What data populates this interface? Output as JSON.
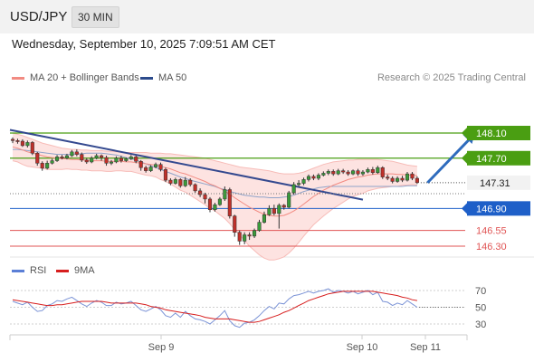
{
  "header": {
    "symbol": "USD/JPY",
    "timeframe": "30 MIN"
  },
  "datetime": "Wednesday, September 10, 2025 7:09:51 AM CET",
  "legend_main": [
    {
      "label": "MA 20 + Bollinger Bands",
      "color": "#f28b82"
    },
    {
      "label": "MA 50",
      "color": "#2c4b8c"
    }
  ],
  "credit": "Research © 2025 Trading Central",
  "legend_rsi": [
    {
      "label": "RSI",
      "color": "#5b7fd6"
    },
    {
      "label": "9MA",
      "color": "#d71e1e"
    }
  ],
  "colors": {
    "up": "#3a9a3a",
    "down": "#c0302a",
    "resistance": "#4a9e12",
    "support_blue": "#1e5fc8",
    "support_red": "#e05555"
  },
  "chart_data": [
    {
      "type": "candlestick",
      "title": "USD/JPY 30 MIN",
      "x_ticks": [
        "Sep 9",
        "Sep 10",
        "Sep 11"
      ],
      "last_price": "147.31",
      "levels": [
        {
          "value": "148.10",
          "kind": "resistance"
        },
        {
          "value": "147.70",
          "kind": "resistance"
        },
        {
          "value": "146.90",
          "kind": "support"
        },
        {
          "value": "146.55",
          "kind": "support"
        },
        {
          "value": "146.30",
          "kind": "support"
        }
      ],
      "candles": [
        [
          148.0,
          147.98,
          148.03,
          147.94
        ],
        [
          147.98,
          147.97,
          148.01,
          147.93
        ],
        [
          147.97,
          147.9,
          148.0,
          147.88
        ],
        [
          147.9,
          147.95,
          147.98,
          147.87
        ],
        [
          147.95,
          147.78,
          147.97,
          147.75
        ],
        [
          147.78,
          147.62,
          147.8,
          147.58
        ],
        [
          147.62,
          147.54,
          147.65,
          147.5
        ],
        [
          147.54,
          147.62,
          147.66,
          147.52
        ],
        [
          147.62,
          147.66,
          147.69,
          147.6
        ],
        [
          147.66,
          147.72,
          147.75,
          147.64
        ],
        [
          147.72,
          147.7,
          147.75,
          147.68
        ],
        [
          147.7,
          147.74,
          147.77,
          147.68
        ],
        [
          147.74,
          147.8,
          147.83,
          147.72
        ],
        [
          147.8,
          147.76,
          147.84,
          147.73
        ],
        [
          147.76,
          147.67,
          147.79,
          147.64
        ],
        [
          147.67,
          147.64,
          147.7,
          147.61
        ],
        [
          147.64,
          147.7,
          147.73,
          147.62
        ],
        [
          147.7,
          147.74,
          147.77,
          147.68
        ],
        [
          147.74,
          147.71,
          147.76,
          147.66
        ],
        [
          147.71,
          147.62,
          147.74,
          147.58
        ],
        [
          147.62,
          147.64,
          147.67,
          147.59
        ],
        [
          147.64,
          147.7,
          147.73,
          147.62
        ],
        [
          147.7,
          147.66,
          147.74,
          147.63
        ],
        [
          147.66,
          147.69,
          147.71,
          147.64
        ],
        [
          147.69,
          147.72,
          147.75,
          147.67
        ],
        [
          147.72,
          147.65,
          147.74,
          147.62
        ],
        [
          147.65,
          147.55,
          147.67,
          147.5
        ],
        [
          147.55,
          147.5,
          147.58,
          147.47
        ],
        [
          147.5,
          147.56,
          147.59,
          147.48
        ],
        [
          147.56,
          147.6,
          147.63,
          147.54
        ],
        [
          147.6,
          147.52,
          147.63,
          147.49
        ],
        [
          147.52,
          147.35,
          147.55,
          147.32
        ],
        [
          147.35,
          147.3,
          147.38,
          147.27
        ],
        [
          147.3,
          147.36,
          147.39,
          147.28
        ],
        [
          147.36,
          147.26,
          147.38,
          147.23
        ],
        [
          147.26,
          147.35,
          147.4,
          147.24
        ],
        [
          147.35,
          147.28,
          147.38,
          147.25
        ],
        [
          147.28,
          147.18,
          147.3,
          147.15
        ],
        [
          147.18,
          147.12,
          147.22,
          147.08
        ],
        [
          147.12,
          147.05,
          147.15,
          146.98
        ],
        [
          147.05,
          146.88,
          147.08,
          146.84
        ],
        [
          146.88,
          146.96,
          146.99,
          146.85
        ],
        [
          146.96,
          147.05,
          147.08,
          146.94
        ],
        [
          147.05,
          147.2,
          147.25,
          147.02
        ],
        [
          147.2,
          146.78,
          147.23,
          146.74
        ],
        [
          146.78,
          146.52,
          146.8,
          146.45
        ],
        [
          146.52,
          146.38,
          146.55,
          146.32
        ],
        [
          146.38,
          146.48,
          146.52,
          146.33
        ],
        [
          146.48,
          146.46,
          146.52,
          146.4
        ],
        [
          146.46,
          146.55,
          146.58,
          146.43
        ],
        [
          146.55,
          146.68,
          146.72,
          146.53
        ],
        [
          146.68,
          146.8,
          146.85,
          146.66
        ],
        [
          146.8,
          146.9,
          146.95,
          146.78
        ],
        [
          146.9,
          146.82,
          146.96,
          146.79
        ],
        [
          146.82,
          146.95,
          146.98,
          146.58
        ],
        [
          146.95,
          146.92,
          146.97,
          146.88
        ],
        [
          146.92,
          147.15,
          147.18,
          146.9
        ],
        [
          147.15,
          147.28,
          147.32,
          147.12
        ],
        [
          147.28,
          147.3,
          147.35,
          147.25
        ],
        [
          147.3,
          147.36,
          147.39,
          147.27
        ],
        [
          147.36,
          147.41,
          147.44,
          147.33
        ],
        [
          147.41,
          147.38,
          147.44,
          147.35
        ],
        [
          147.38,
          147.43,
          147.46,
          147.35
        ],
        [
          147.43,
          147.46,
          147.49,
          147.41
        ],
        [
          147.46,
          147.49,
          147.52,
          147.43
        ],
        [
          147.49,
          147.45,
          147.52,
          147.42
        ],
        [
          147.45,
          147.5,
          147.53,
          147.43
        ],
        [
          147.5,
          147.48,
          147.53,
          147.45
        ],
        [
          147.48,
          147.45,
          147.51,
          147.42
        ],
        [
          147.45,
          147.5,
          147.52,
          147.43
        ],
        [
          147.5,
          147.45,
          147.53,
          147.42
        ],
        [
          147.45,
          147.48,
          147.51,
          147.42
        ],
        [
          147.48,
          147.52,
          147.55,
          147.46
        ],
        [
          147.52,
          147.47,
          147.56,
          147.44
        ],
        [
          147.47,
          147.55,
          147.58,
          147.45
        ],
        [
          147.55,
          147.4,
          147.57,
          147.37
        ],
        [
          147.4,
          147.38,
          147.44,
          147.35
        ],
        [
          147.38,
          147.33,
          147.41,
          147.3
        ],
        [
          147.33,
          147.38,
          147.41,
          147.31
        ],
        [
          147.38,
          147.35,
          147.42,
          147.32
        ],
        [
          147.35,
          147.45,
          147.48,
          147.33
        ],
        [
          147.45,
          147.38,
          147.48,
          147.35
        ],
        [
          147.38,
          147.31,
          147.41,
          147.29
        ]
      ],
      "ma20": [
        147.88,
        147.86,
        147.83,
        147.8,
        147.78,
        147.76,
        147.74,
        147.72,
        147.71,
        147.7,
        147.69,
        147.69,
        147.68,
        147.68,
        147.67,
        147.67,
        147.66,
        147.66,
        147.66,
        147.65,
        147.65,
        147.65,
        147.65,
        147.64,
        147.64,
        147.63,
        147.62,
        147.61,
        147.6,
        147.59,
        147.57,
        147.55,
        147.53,
        147.5,
        147.47,
        147.45,
        147.42,
        147.39,
        147.36,
        147.33,
        147.29,
        147.26,
        147.22,
        147.18,
        147.13,
        147.07,
        147.02,
        146.97,
        146.92,
        146.88,
        146.84,
        146.81,
        146.79,
        146.78,
        146.78,
        146.79,
        146.82,
        146.86,
        146.91,
        146.97,
        147.03,
        147.09,
        147.14,
        147.19,
        147.23,
        147.27,
        147.3,
        147.33,
        147.36,
        147.38,
        147.4,
        147.41,
        147.43,
        147.44,
        147.45,
        147.45,
        147.45,
        147.45,
        147.44,
        147.44,
        147.43,
        147.43,
        147.42
      ],
      "bb_upper": [
        148.1,
        148.08,
        148.06,
        148.03,
        148.0,
        147.97,
        147.94,
        147.92,
        147.9,
        147.88,
        147.86,
        147.85,
        147.84,
        147.84,
        147.83,
        147.83,
        147.82,
        147.82,
        147.82,
        147.81,
        147.81,
        147.8,
        147.8,
        147.79,
        147.79,
        147.79,
        147.79,
        147.79,
        147.78,
        147.78,
        147.78,
        147.77,
        147.77,
        147.76,
        147.75,
        147.74,
        147.73,
        147.72,
        147.71,
        147.7,
        147.68,
        147.66,
        147.64,
        147.62,
        147.6,
        147.58,
        147.56,
        147.55,
        147.54,
        147.53,
        147.52,
        147.51,
        147.5,
        147.48,
        147.46,
        147.45,
        147.45,
        147.45,
        147.46,
        147.48,
        147.51,
        147.54,
        147.57,
        147.6,
        147.62,
        147.64,
        147.65,
        147.66,
        147.67,
        147.67,
        147.68,
        147.68,
        147.68,
        147.68,
        147.68,
        147.67,
        147.66,
        147.65,
        147.63,
        147.61,
        147.59,
        147.58,
        147.57
      ],
      "bb_lower": [
        147.66,
        147.64,
        147.6,
        147.57,
        147.56,
        147.55,
        147.54,
        147.52,
        147.52,
        147.52,
        147.52,
        147.53,
        147.52,
        147.52,
        147.51,
        147.51,
        147.5,
        147.5,
        147.5,
        147.49,
        147.49,
        147.5,
        147.5,
        147.49,
        147.49,
        147.47,
        147.45,
        147.43,
        147.42,
        147.4,
        147.36,
        147.33,
        147.29,
        147.24,
        147.19,
        147.16,
        147.11,
        147.06,
        147.01,
        146.96,
        146.9,
        146.86,
        146.8,
        146.74,
        146.66,
        146.56,
        146.48,
        146.39,
        146.3,
        146.23,
        146.16,
        146.11,
        146.08,
        146.08,
        146.1,
        146.13,
        146.19,
        146.27,
        146.36,
        146.46,
        146.55,
        146.64,
        146.71,
        146.78,
        146.84,
        146.9,
        146.95,
        147.0,
        147.05,
        147.09,
        147.12,
        147.14,
        147.18,
        147.2,
        147.22,
        147.23,
        147.24,
        147.25,
        147.25,
        147.27,
        147.27,
        147.28,
        147.27
      ],
      "ma50": [
        147.84,
        147.84,
        147.83,
        147.82,
        147.81,
        147.8,
        147.79,
        147.78,
        147.77,
        147.76,
        147.76,
        147.76,
        147.76,
        147.77,
        147.77,
        147.78,
        147.78,
        147.78,
        147.78,
        147.77,
        147.76,
        147.75,
        147.73,
        147.71,
        147.69,
        147.67,
        147.64,
        147.61,
        147.58,
        147.55,
        147.52,
        147.49,
        147.46,
        147.43,
        147.4,
        147.38,
        147.35,
        147.33,
        147.31,
        147.29,
        147.27,
        147.25,
        147.22,
        147.2,
        147.17,
        147.15,
        147.13,
        147.11,
        147.1,
        147.09,
        147.08,
        147.08,
        147.07,
        147.07,
        147.07,
        147.08,
        147.09,
        147.11,
        147.14,
        147.17,
        147.19,
        147.21,
        147.23,
        147.24,
        147.25,
        147.25,
        147.25,
        147.25,
        147.25,
        147.25,
        147.25,
        147.25,
        147.25,
        147.25,
        147.25,
        147.25,
        147.25,
        147.25,
        147.25,
        147.25,
        147.26,
        147.26,
        147.26
      ],
      "trendline": [
        [
          0,
          148.15
        ],
        [
          71,
          147.04
        ]
      ],
      "forecast": [
        [
          83,
          147.31
        ],
        [
          90,
          148.1
        ]
      ]
    },
    {
      "type": "line",
      "title": "RSI",
      "y_ticks": [
        "70",
        "50",
        "30"
      ],
      "ylim": [
        20,
        80
      ],
      "series": [
        {
          "name": "RSI",
          "values": [
            57,
            55,
            53,
            56,
            50,
            45,
            46,
            52,
            54,
            58,
            57,
            60,
            62,
            58,
            54,
            51,
            55,
            58,
            56,
            52,
            52,
            56,
            54,
            55,
            57,
            52,
            47,
            45,
            48,
            51,
            47,
            40,
            38,
            43,
            38,
            45,
            40,
            36,
            35,
            33,
            30,
            35,
            40,
            46,
            34,
            28,
            26,
            31,
            32,
            35,
            40,
            46,
            51,
            48,
            55,
            54,
            60,
            64,
            65,
            67,
            69,
            67,
            69,
            70,
            72,
            68,
            70,
            69,
            67,
            69,
            66,
            68,
            70,
            65,
            68,
            57,
            56,
            52,
            55,
            53,
            58,
            54,
            50
          ]
        },
        {
          "name": "9MA",
          "values": [
            59,
            58,
            57,
            56,
            55,
            54,
            53,
            52,
            52,
            53,
            53,
            54,
            55,
            56,
            57,
            57,
            57,
            57,
            57,
            56,
            55,
            55,
            55,
            55,
            55,
            55,
            54,
            53,
            51,
            50,
            49,
            47,
            46,
            45,
            44,
            43,
            42,
            41,
            40,
            38,
            37,
            36,
            36,
            36,
            36,
            35,
            34,
            33,
            32,
            32,
            33,
            35,
            37,
            39,
            41,
            44,
            46,
            49,
            52,
            55,
            58,
            60,
            62,
            64,
            66,
            67,
            68,
            69,
            69,
            69,
            69,
            69,
            69,
            69,
            68,
            67,
            66,
            65,
            64,
            62,
            61,
            59,
            58
          ]
        }
      ],
      "last_value": 50
    }
  ]
}
